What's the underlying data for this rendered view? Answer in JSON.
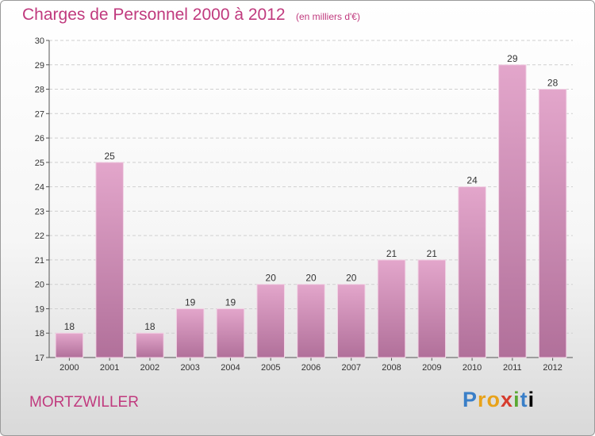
{
  "title": "Charges de Personnel 2000 à 2012",
  "subtitle": "(en milliers d'€)",
  "commune": "MORTZWILLER",
  "logo": {
    "letters": [
      "P",
      "r",
      "o",
      "x",
      "i",
      "t",
      "i"
    ],
    "text": "Proxiti"
  },
  "colors": {
    "bar_top": "#e3a6cb",
    "bar_bottom": "#b1709a",
    "title": "#c03a7e"
  },
  "chart_data": {
    "type": "bar",
    "title": "Charges de Personnel 2000 à 2012",
    "subtitle": "(en milliers d'€)",
    "xlabel": "",
    "ylabel": "",
    "categories": [
      "2000",
      "2001",
      "2002",
      "2003",
      "2004",
      "2005",
      "2006",
      "2007",
      "2008",
      "2009",
      "2010",
      "2011",
      "2012"
    ],
    "values": [
      18,
      25,
      18,
      19,
      19,
      20,
      20,
      20,
      21,
      21,
      24,
      29,
      28
    ],
    "ylim": [
      17,
      30
    ],
    "yticks": [
      17,
      18,
      19,
      20,
      21,
      22,
      23,
      24,
      25,
      26,
      27,
      28,
      29,
      30
    ],
    "grid": true,
    "legend": "none"
  }
}
